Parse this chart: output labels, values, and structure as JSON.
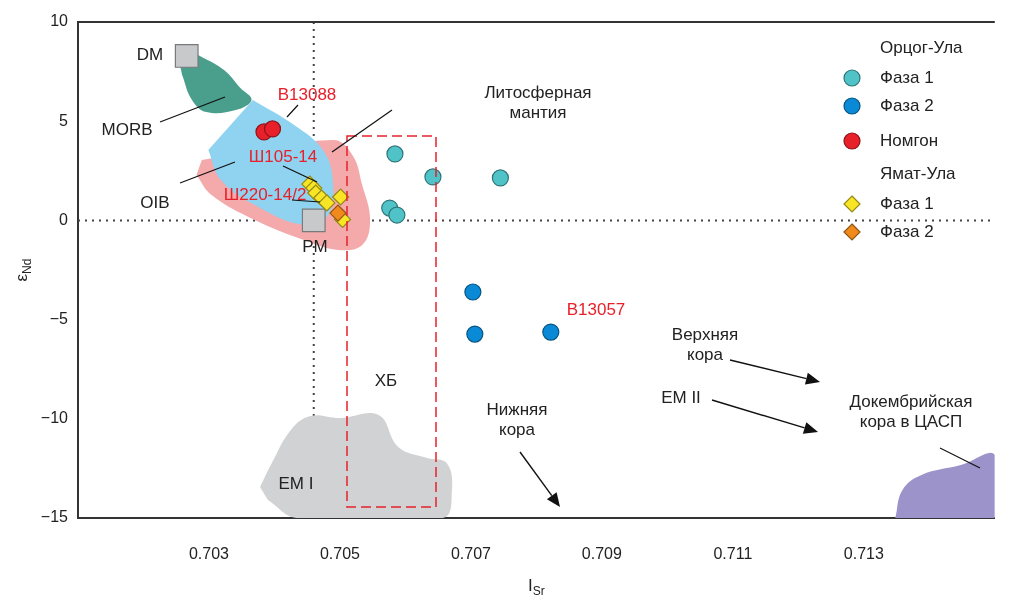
{
  "chart_data": {
    "type": "scatter",
    "xlabel": "I$_{Sr}$",
    "ylabel": "ε$_{Nd}$",
    "xlim": [
      0.701,
      0.715
    ],
    "xticks": [
      0.703,
      0.705,
      0.707,
      0.709,
      0.711,
      0.713
    ],
    "ylim": [
      -15,
      10
    ],
    "yticks": [
      -15,
      -10,
      -5,
      0,
      5,
      10
    ],
    "grid": false,
    "legend": "top right",
    "series": [
      {
        "type": "area",
        "color": "#f4a9aa",
        "x": [
          0.70289,
          0.70489,
          0.70519,
          0.70534,
          0.70546,
          0.70534,
          0.70497,
          0.70445,
          0.7037,
          0.70304,
          0.70281
        ],
        "values": [
          3.04,
          4.05,
          3.3,
          1.78,
          0.02,
          -1.24,
          -1.49,
          -0.99,
          0.02,
          1.28,
          2.29
        ]
      },
      {
        "type": "area",
        "color": "#8fd3f0",
        "x": [
          0.70367,
          0.7043,
          0.70474,
          0.70489,
          0.70482,
          0.70445,
          0.7037,
          0.70318,
          0.70299
        ],
        "values": [
          6.07,
          4.81,
          3.55,
          2.04,
          0.27,
          -0.23,
          0.78,
          2.04,
          3.55
        ]
      },
      {
        "type": "area",
        "color": "#4a9e8c",
        "x": [
          0.70249,
          0.70289,
          0.70323,
          0.70348,
          0.70365,
          0.70341,
          0.70296,
          0.70274,
          0.70259
        ],
        "values": [
          8.84,
          8.24,
          7.58,
          6.67,
          6.07,
          5.56,
          5.46,
          6.07,
          7.33
        ]
      },
      {
        "type": "area",
        "color": "#d1d2d4",
        "x": [
          0.70378,
          0.70396,
          0.70425,
          0.70455,
          0.705,
          0.70559,
          0.70589,
          0.70633,
          0.70663,
          0.70671,
          0.70657,
          0.70434,
          0.7039
        ],
        "values": [
          -13.44,
          -12.23,
          -10.56,
          -9.86,
          -9.96,
          -9.81,
          -11.42,
          -11.97,
          -12.23,
          -13.59,
          -15,
          -15,
          -14.09
        ]
      },
      {
        "type": "area",
        "color": "#9b93c9",
        "x": [
          0.71348,
          0.71359,
          0.71388,
          0.71448,
          0.715,
          0.715
        ],
        "values": [
          -15,
          -13.59,
          -12.83,
          -12.33,
          -11.82,
          -15
        ]
      },
      {
        "color": "#c8c9cb",
        "marker": "square",
        "x": [
          0.70266,
          0.7046
        ],
        "values": [
          8.29,
          0.0
        ]
      },
      {
        "name": "Фаза 1",
        "color": "#4fc3c8",
        "marker": "circle",
        "x": [
          0.70584,
          0.70642,
          0.70745,
          0.70576,
          0.70587
        ],
        "values": [
          3.35,
          2.19,
          2.14,
          0.62,
          0.27
        ]
      },
      {
        "name": "Фаза 2",
        "color": "#0a8ad6",
        "marker": "circle",
        "x": [
          0.70703,
          0.70706,
          0.70822
        ],
        "values": [
          -3.61,
          -5.73,
          -5.63
        ]
      },
      {
        "name": "Номгон",
        "color": "#e8202a",
        "marker": "circle",
        "x": [
          0.70384,
          0.70397
        ],
        "values": [
          4.46,
          4.61
        ]
      },
      {
        "name": "Фаза 1",
        "color": "#f7e526",
        "marker": "diamond",
        "x": [
          0.70454,
          0.7046,
          0.70463,
          0.70472,
          0.7048,
          0.70501,
          0.70504
        ],
        "values": [
          1.83,
          1.63,
          1.38,
          1.13,
          0.88,
          1.18,
          0.05
        ]
      },
      {
        "name": "Фаза 2",
        "color": "#f08a1c",
        "marker": "diamond",
        "x": [
          0.70497
        ],
        "values": [
          0.37
        ]
      }
    ],
    "ref_lines": [
      {
        "axis": "x",
        "value": 0.7046,
        "color": "#444444",
        "line_style": "dotted"
      },
      {
        "axis": "y",
        "value": 0,
        "color": "#444444",
        "line_style": "dotted"
      }
    ],
    "annotations": [
      "Орцог-Ула",
      "Ямат-Ула",
      "DM",
      "MORB",
      "OIB",
      "PM",
      "B13088",
      "Литосферная\nмантия",
      "Ш105-14",
      "Ш220-14/2",
      "B13057",
      "ХБ",
      "Верхняя\nкора",
      "EM II",
      "Нижняя\nкора",
      "Докембрийская\nкора в ЦАСП",
      "EM I"
    ]
  }
}
